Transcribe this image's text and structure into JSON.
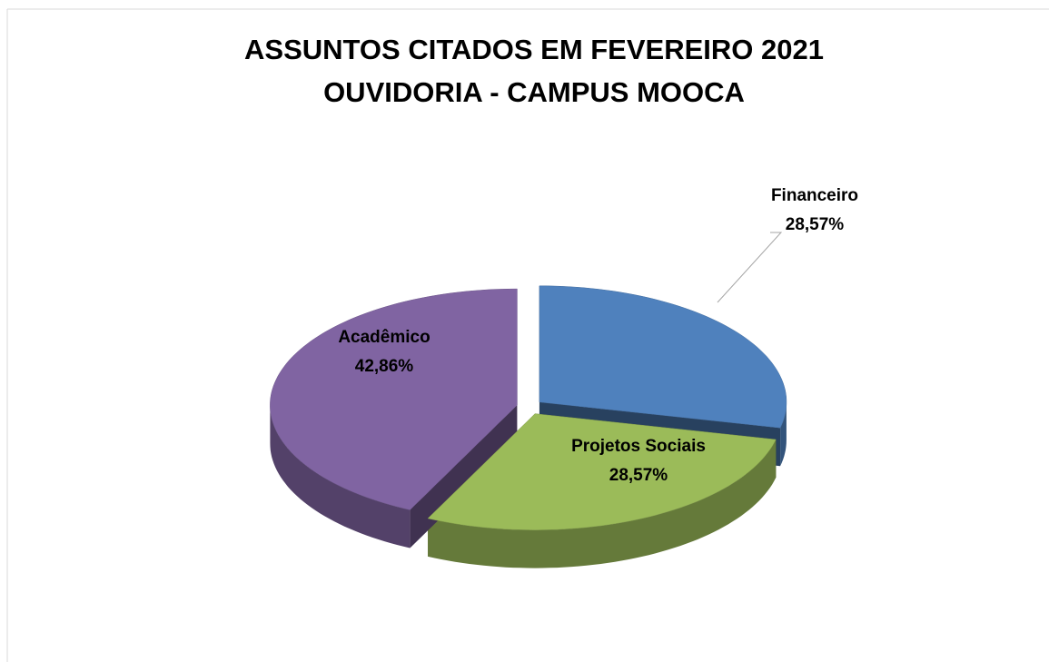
{
  "chart_data": {
    "type": "pie3d",
    "title": "ASSUNTOS CITADOS EM FEVEREIRO 2021",
    "subtitle": "OUVIDORIA - CAMPUS MOOCA",
    "categories": [
      "Financeiro",
      "Projetos Sociais",
      "Acadêmico"
    ],
    "values": [
      28.57,
      28.57,
      42.86
    ],
    "value_labels": [
      "28,57%",
      "28,57%",
      "42,86%"
    ],
    "colors": [
      "#4f81bd",
      "#9bbb59",
      "#8064a2"
    ]
  }
}
